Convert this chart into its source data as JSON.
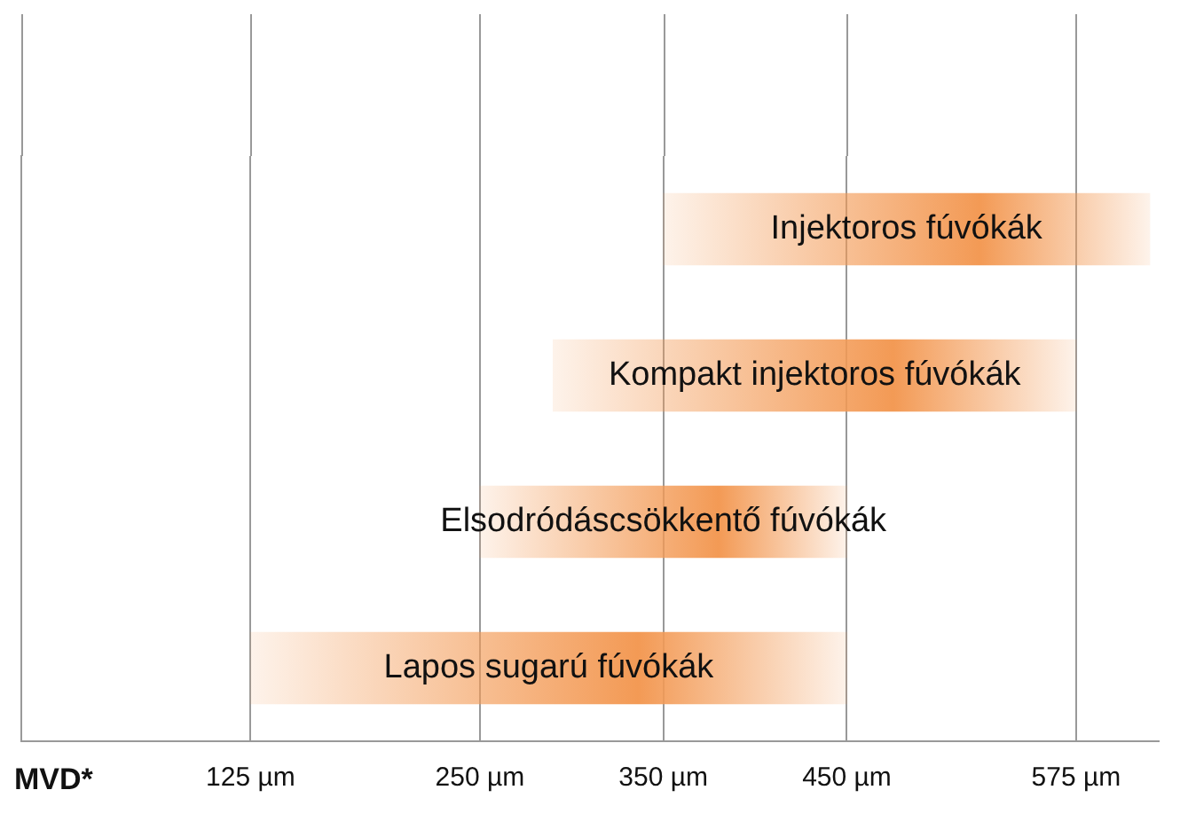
{
  "chart_data": {
    "type": "bar",
    "orientation": "horizontal",
    "xlabel": "MVD*",
    "categories": [
      "Injektoros fúvókák",
      "Kompakt injektoros fúvókák",
      "Elsodródáscsökkentő fúvókák",
      "Lapos sugarú fúvókák"
    ],
    "base": [
      350,
      290,
      250,
      125
    ],
    "values": [
      265,
      285,
      200,
      325
    ],
    "color": "#f39a55",
    "xlim": [
      0,
      620
    ],
    "xticks": [
      {
        "value": 125,
        "label": "125 µm"
      },
      {
        "value": 250,
        "label": "250 µm"
      },
      {
        "value": 350,
        "label": "350 µm"
      },
      {
        "value": 450,
        "label": "450 µm"
      },
      {
        "value": 575,
        "label": "575 µm"
      }
    ],
    "grid": "x",
    "tick_labels": "x",
    "legend": false
  }
}
